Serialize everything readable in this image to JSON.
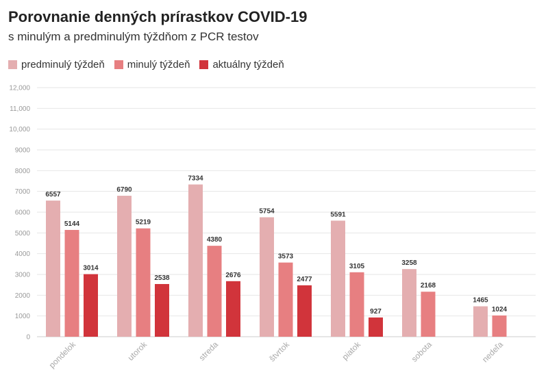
{
  "chart_data": {
    "type": "bar",
    "title": "Porovnanie denných prírastkov COVID-19",
    "subtitle": "s minulým a predminulým týždňom z PCR testov",
    "categories": [
      "pondelok",
      "utorok",
      "streda",
      "štvrtok",
      "piatok",
      "sobota",
      "nedeľa"
    ],
    "series": [
      {
        "name": "predminulý týždeň",
        "color": "#e4aeb0",
        "values": [
          6557,
          6790,
          7334,
          5754,
          5591,
          3258,
          1465
        ]
      },
      {
        "name": "minulý týždeň",
        "color": "#e77f81",
        "values": [
          5144,
          5219,
          4380,
          3573,
          3105,
          2168,
          1024
        ]
      },
      {
        "name": "aktuálny týždeň",
        "color": "#d1343b",
        "values": [
          3014,
          2538,
          2676,
          2477,
          927,
          null,
          null
        ]
      }
    ],
    "ylim": [
      0,
      12000
    ],
    "yticks": [
      {
        "value": 0,
        "label": "0"
      },
      {
        "value": 1000,
        "label": "1000"
      },
      {
        "value": 2000,
        "label": "2000"
      },
      {
        "value": 3000,
        "label": "3000"
      },
      {
        "value": 4000,
        "label": "4000"
      },
      {
        "value": 5000,
        "label": "5000"
      },
      {
        "value": 6000,
        "label": "6000"
      },
      {
        "value": 7000,
        "label": "7000"
      },
      {
        "value": 8000,
        "label": "8000"
      },
      {
        "value": 9000,
        "label": "9000"
      },
      {
        "value": 10000,
        "label": "10,000"
      },
      {
        "value": 11000,
        "label": "11,000"
      },
      {
        "value": 12000,
        "label": "12,000"
      }
    ],
    "xlabel": "",
    "ylabel": "",
    "grid": true,
    "legend_position": "top-left",
    "data_labels": true
  }
}
